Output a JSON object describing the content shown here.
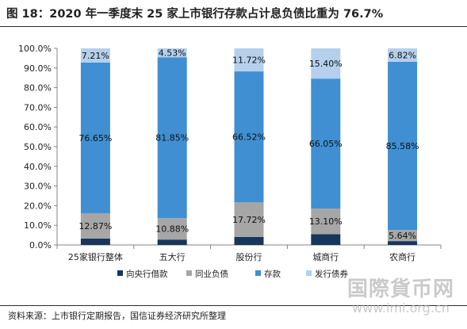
{
  "title": "图 18：2020 年一季度末 25 家上市银行存款占计息负债比重为 76.7%",
  "source": "资料来源：上市银行定期报告，国信证券经济研究所整理",
  "watermark": {
    "main": "国際貨币网",
    "sub": "www.imi.org.cn"
  },
  "chart_data": {
    "type": "bar",
    "stacked": true,
    "categories": [
      "25家银行整体",
      "五大行",
      "股份行",
      "城商行",
      "农商行"
    ],
    "series": [
      {
        "name": "向央行借款",
        "color": "#17365d",
        "values": [
          3.27,
          2.74,
          4.04,
          5.45,
          1.96
        ]
      },
      {
        "name": "同业负债",
        "color": "#a6a6a6",
        "values": [
          12.87,
          10.88,
          17.72,
          13.1,
          5.64
        ]
      },
      {
        "name": "存款",
        "color": "#3f8fd2",
        "values": [
          76.65,
          81.85,
          66.52,
          66.05,
          85.58
        ]
      },
      {
        "name": "发行债券",
        "color": "#b4d0ec",
        "values": [
          7.21,
          4.53,
          11.72,
          15.4,
          6.82
        ]
      }
    ],
    "data_labels": [
      [
        "",
        "12.87%",
        "76.65%",
        "7.21%"
      ],
      [
        "",
        "10.88%",
        "81.85%",
        "4.53%"
      ],
      [
        "",
        "17.72%",
        "66.52%",
        "11.72%"
      ],
      [
        "",
        "13.10%",
        "66.05%",
        "15.40%"
      ],
      [
        "",
        "5.64%",
        "85.58%",
        "6.82%"
      ]
    ],
    "yticks": [
      "0.0%",
      "10.0%",
      "20.0%",
      "30.0%",
      "40.0%",
      "50.0%",
      "60.0%",
      "70.0%",
      "80.0%",
      "90.0%",
      "100.0%"
    ],
    "ylim": [
      0,
      100
    ],
    "legend_position": "bottom",
    "grid": false
  }
}
